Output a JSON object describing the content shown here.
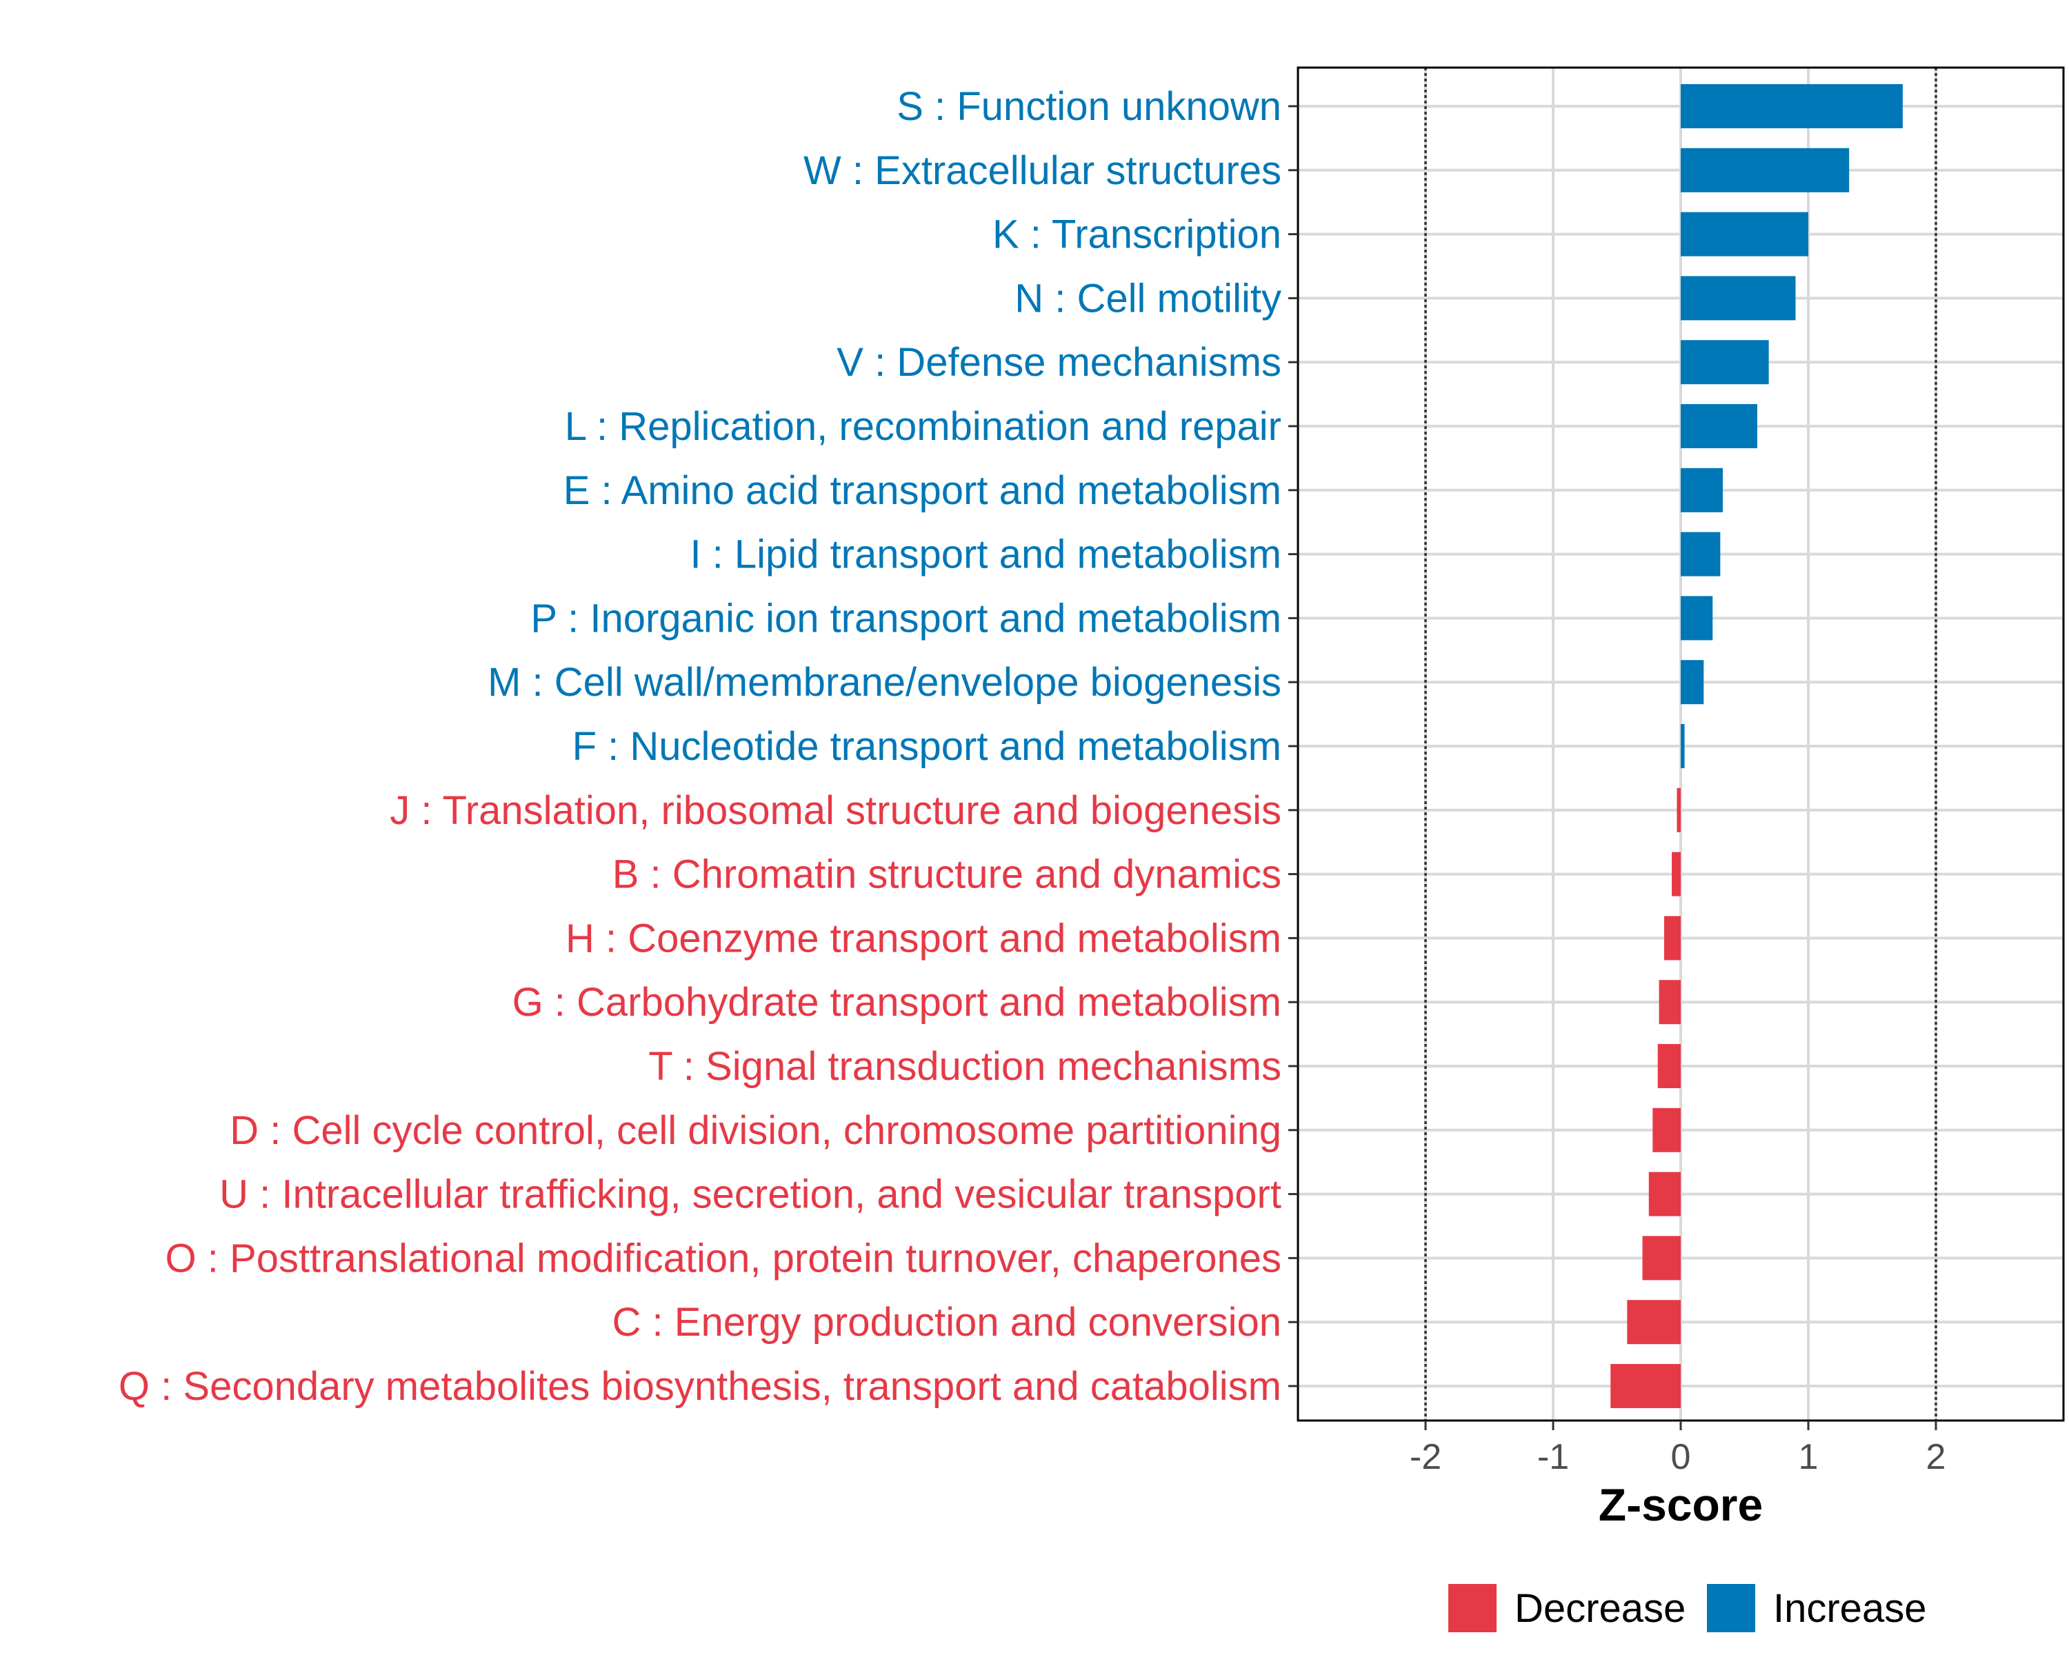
{
  "chart_data": {
    "type": "bar",
    "orientation": "horizontal",
    "title": "",
    "xlabel": "Z-score",
    "ylabel": "",
    "xlim": [
      -3,
      3
    ],
    "xticks": [
      -2,
      -1,
      0,
      1,
      2
    ],
    "xtick_labels": [
      "-2",
      "-1",
      "0",
      "1",
      "2"
    ],
    "reference_lines": [
      -2,
      2
    ],
    "grid": true,
    "legend_position": "bottom",
    "categories": [
      "S : Function unknown",
      "W : Extracellular structures",
      "K : Transcription",
      "N : Cell motility",
      "V : Defense mechanisms",
      "L : Replication, recombination and repair",
      "E : Amino acid transport and metabolism",
      "I : Lipid transport and metabolism",
      "P : Inorganic ion transport and metabolism",
      "M : Cell wall/membrane/envelope biogenesis",
      "F : Nucleotide transport and metabolism",
      "J : Translation, ribosomal structure and biogenesis",
      "B : Chromatin structure and dynamics",
      "H : Coenzyme transport and metabolism",
      "G : Carbohydrate transport and metabolism",
      "T : Signal transduction mechanisms",
      "D : Cell cycle control, cell division, chromosome partitioning",
      "U : Intracellular trafficking, secretion, and vesicular transport",
      "O : Posttranslational modification, protein turnover, chaperones",
      "C : Energy production and conversion",
      "Q : Secondary metabolites biosynthesis, transport and catabolism"
    ],
    "values": [
      1.74,
      1.32,
      1.0,
      0.9,
      0.69,
      0.6,
      0.33,
      0.31,
      0.25,
      0.18,
      0.03,
      -0.03,
      -0.07,
      -0.13,
      -0.17,
      -0.18,
      -0.22,
      -0.25,
      -0.3,
      -0.42,
      -0.55
    ],
    "groups": [
      "Increase",
      "Increase",
      "Increase",
      "Increase",
      "Increase",
      "Increase",
      "Increase",
      "Increase",
      "Increase",
      "Increase",
      "Increase",
      "Decrease",
      "Decrease",
      "Decrease",
      "Decrease",
      "Decrease",
      "Decrease",
      "Decrease",
      "Decrease",
      "Decrease",
      "Decrease"
    ],
    "legend": [
      {
        "name": "Decrease",
        "color": "#e63946"
      },
      {
        "name": "Increase",
        "color": "#0077b6"
      }
    ]
  }
}
